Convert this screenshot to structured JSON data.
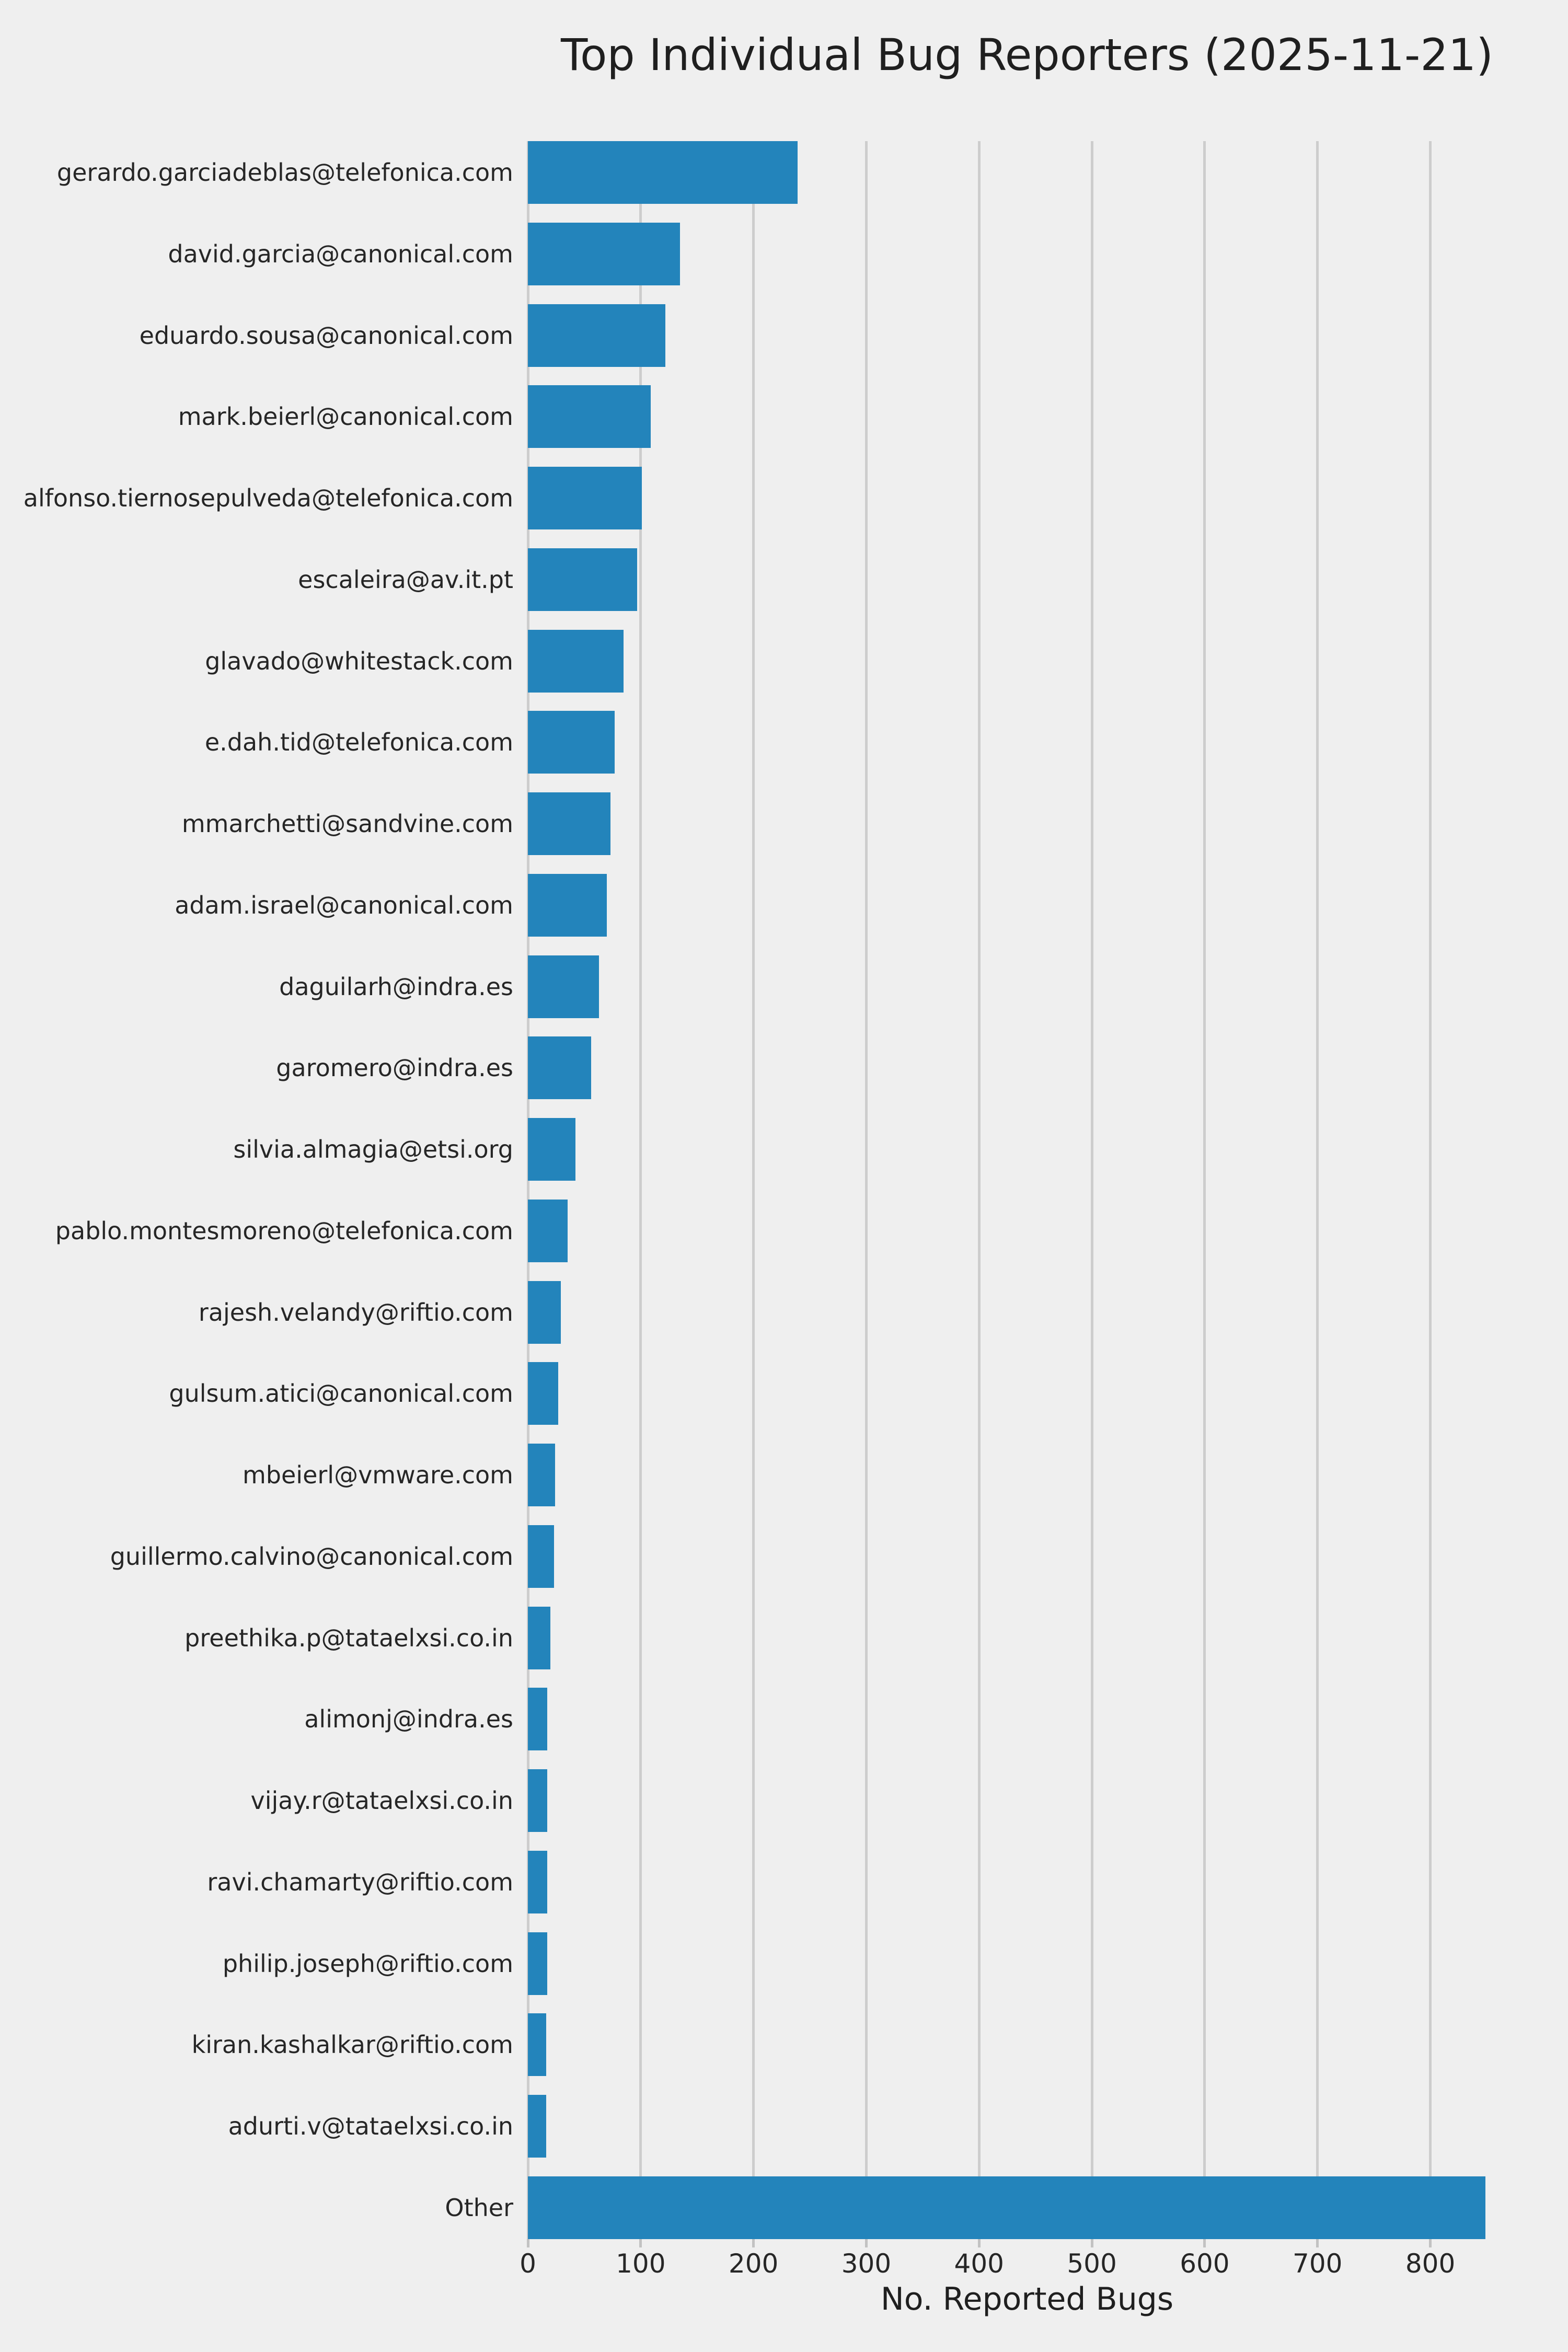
{
  "chart_data": {
    "type": "bar",
    "orientation": "horizontal",
    "title": "Top Individual Bug Reporters (2025-11-21)",
    "xlabel": "No. Reported Bugs",
    "categories": [
      "gerardo.garciadeblas@telefonica.com",
      "david.garcia@canonical.com",
      "eduardo.sousa@canonical.com",
      "mark.beierl@canonical.com",
      "alfonso.tiernosepulveda@telefonica.com",
      "escaleira@av.it.pt",
      "glavado@whitestack.com",
      "e.dah.tid@telefonica.com",
      "mmarchetti@sandvine.com",
      "adam.israel@canonical.com",
      "daguilarh@indra.es",
      "garomero@indra.es",
      "silvia.almagia@etsi.org",
      "pablo.montesmoreno@telefonica.com",
      "rajesh.velandy@riftio.com",
      "gulsum.atici@canonical.com",
      "mbeierl@vmware.com",
      "guillermo.calvino@canonical.com",
      "preethika.p@tataelxsi.co.in",
      "alimonj@indra.es",
      "vijay.r@tataelxsi.co.in",
      "ravi.chamarty@riftio.com",
      "philip.joseph@riftio.com",
      "kiran.kashalkar@riftio.com",
      "adurti.v@tataelxsi.co.in",
      "Other"
    ],
    "values": [
      239,
      135,
      122,
      109,
      101,
      97,
      85,
      77,
      73,
      70,
      63,
      56,
      42,
      35,
      29,
      27,
      24,
      23,
      20,
      17,
      17,
      17,
      17,
      16,
      16,
      849
    ],
    "xticks": [
      0,
      100,
      200,
      300,
      400,
      500,
      600,
      700,
      800
    ],
    "xlim": [
      0,
      885
    ],
    "grid": "vertical",
    "legend": "none",
    "bar_color": "#2384bb",
    "background_color": "#efefef",
    "grid_color": "#cdcdcd",
    "tick_mark_color": "#c2c2c2",
    "text_color": "#262626"
  }
}
